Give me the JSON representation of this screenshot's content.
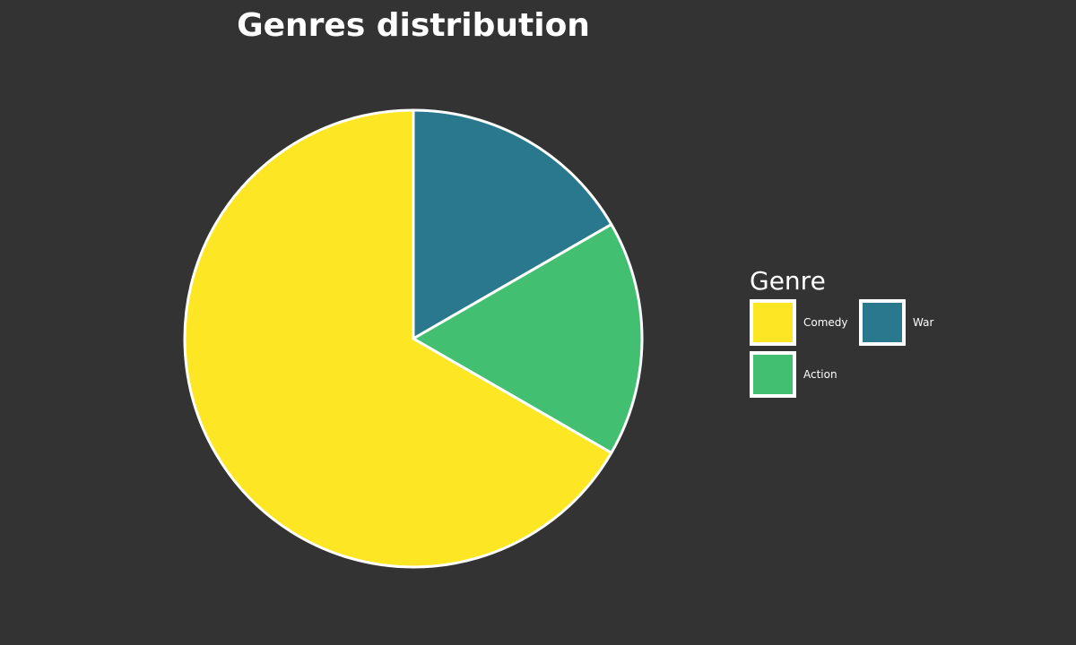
{
  "chart_data": {
    "type": "pie",
    "title": "Genres distribution",
    "categories": [
      "Comedy",
      "War",
      "Action"
    ],
    "values": [
      4,
      1,
      1
    ],
    "start_angle": "top",
    "direction": "counterclockwise-from-comedy",
    "legend": {
      "title": "Genre",
      "placement": "right",
      "entries": [
        "Comedy",
        "War",
        "Action"
      ]
    },
    "colors": {
      "Comedy": "#fde725",
      "War": "#2a788e",
      "Action": "#43bf71"
    },
    "edge_color": "#ffffff",
    "background": "#333333"
  }
}
